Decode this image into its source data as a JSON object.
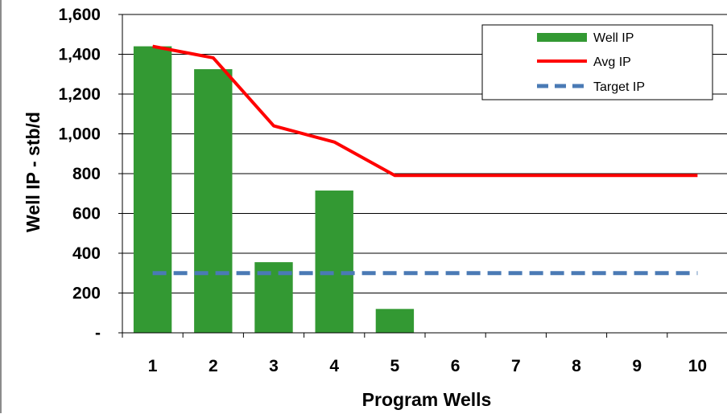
{
  "chart_data": {
    "type": "bar",
    "categories": [
      "1",
      "2",
      "3",
      "4",
      "5",
      "6",
      "7",
      "8",
      "9",
      "10"
    ],
    "xlabel": "Program Wells",
    "ylabel": "Well IP - stb/d",
    "ylim": [
      0,
      1600
    ],
    "yticks": [
      0,
      200,
      400,
      600,
      800,
      1000,
      1200,
      1400,
      1600
    ],
    "ytick_labels": [
      "-",
      "200",
      "400",
      "600",
      "800",
      "1,000",
      "1,200",
      "1,400",
      "1,600"
    ],
    "grid": true,
    "legend_position": "top-right",
    "series": [
      {
        "name": "Well IP",
        "type": "bar",
        "color": "#339933",
        "values": [
          1440,
          1325,
          355,
          715,
          120,
          null,
          null,
          null,
          null,
          null
        ]
      },
      {
        "name": "Avg IP",
        "type": "line",
        "color": "#ff0000",
        "values": [
          1440,
          1382,
          1040,
          959,
          791,
          791,
          791,
          791,
          791,
          791
        ]
      },
      {
        "name": "Target IP",
        "type": "line",
        "dash": true,
        "color": "#4a7ab5",
        "values": [
          300,
          300,
          300,
          300,
          300,
          300,
          300,
          300,
          300,
          300
        ]
      }
    ]
  }
}
